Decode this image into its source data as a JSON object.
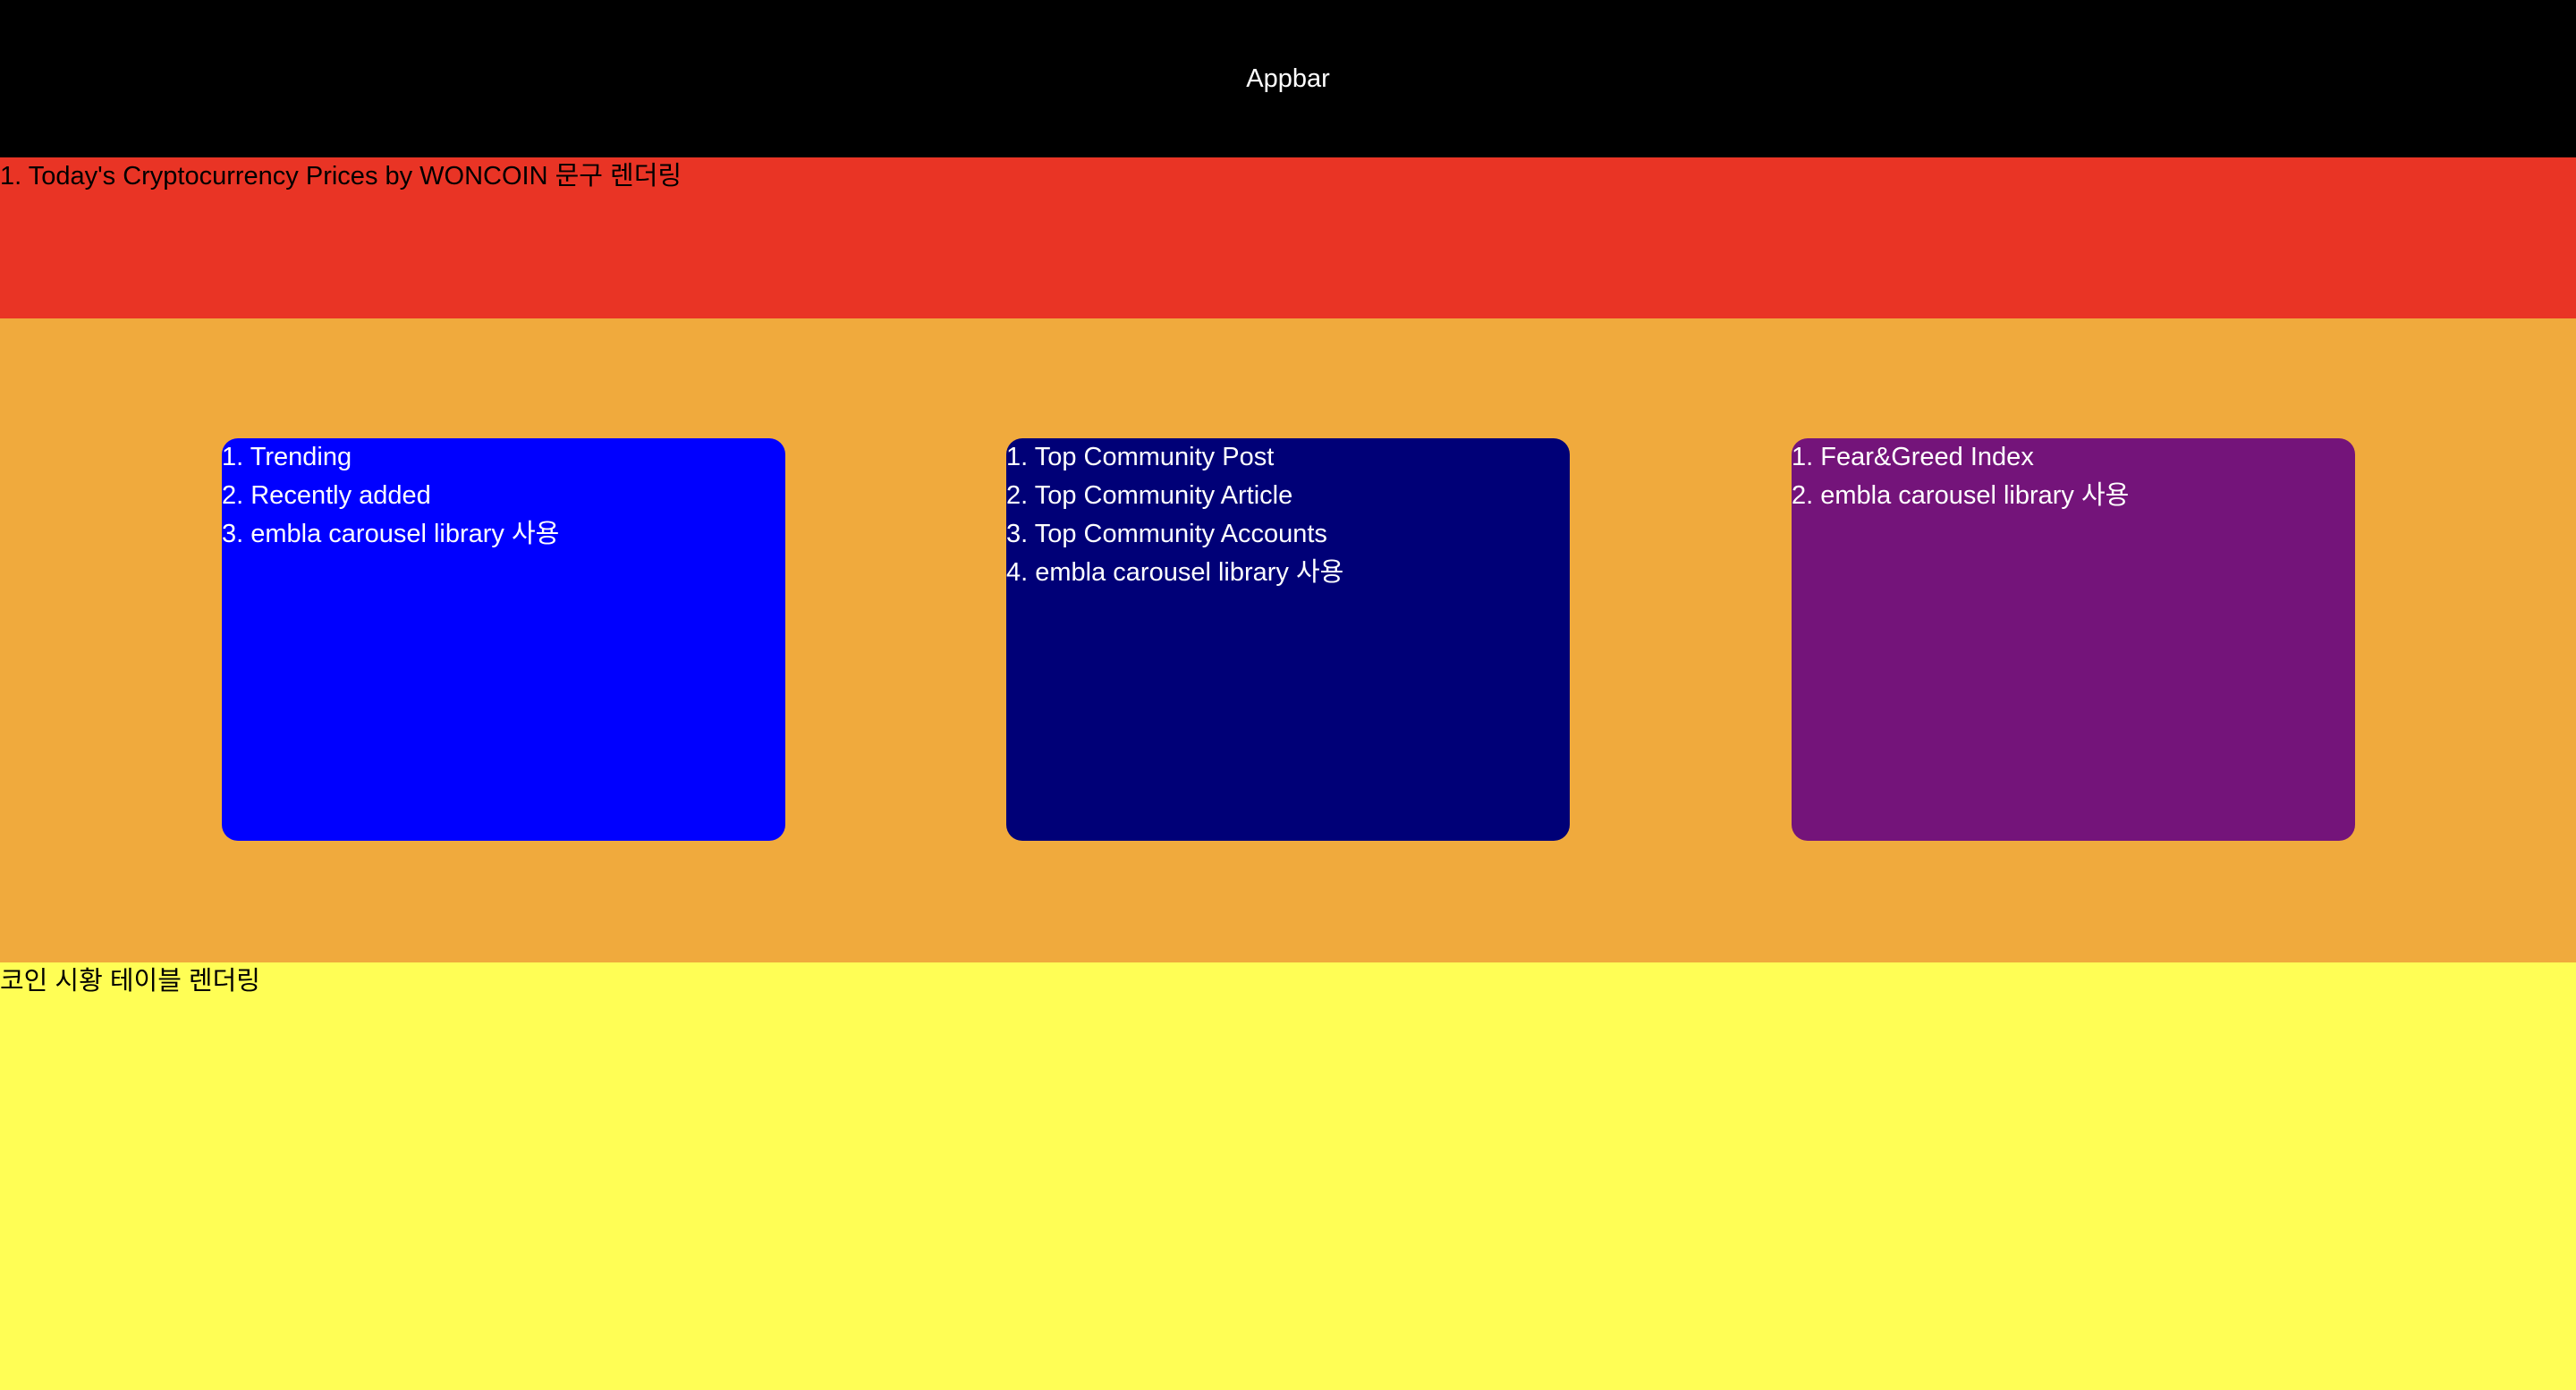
{
  "appbar": {
    "title": "Appbar"
  },
  "hero": {
    "text": "1. Today's Cryptocurrency Prices by WONCOIN 문구 렌더링"
  },
  "cards": [
    {
      "color": "#0000ff",
      "items": [
        "1. Trending",
        "2. Recently added",
        "3. embla carousel library 사용"
      ]
    },
    {
      "color": "#000077",
      "items": [
        "1. Top Community Post",
        "2. Top Community Article",
        "3. Top Community Accounts",
        "4. embla carousel library 사용"
      ]
    },
    {
      "color": "#74147a",
      "items": [
        "1. Fear&Greed Index",
        "2. embla carousel library 사용"
      ]
    }
  ],
  "table": {
    "text": "코인 시황 테이블 렌더링"
  },
  "colors": {
    "appbar": "#000000",
    "hero": "#e93425",
    "carousel_band": "#f0aa3d",
    "table_band": "#fffe55"
  }
}
